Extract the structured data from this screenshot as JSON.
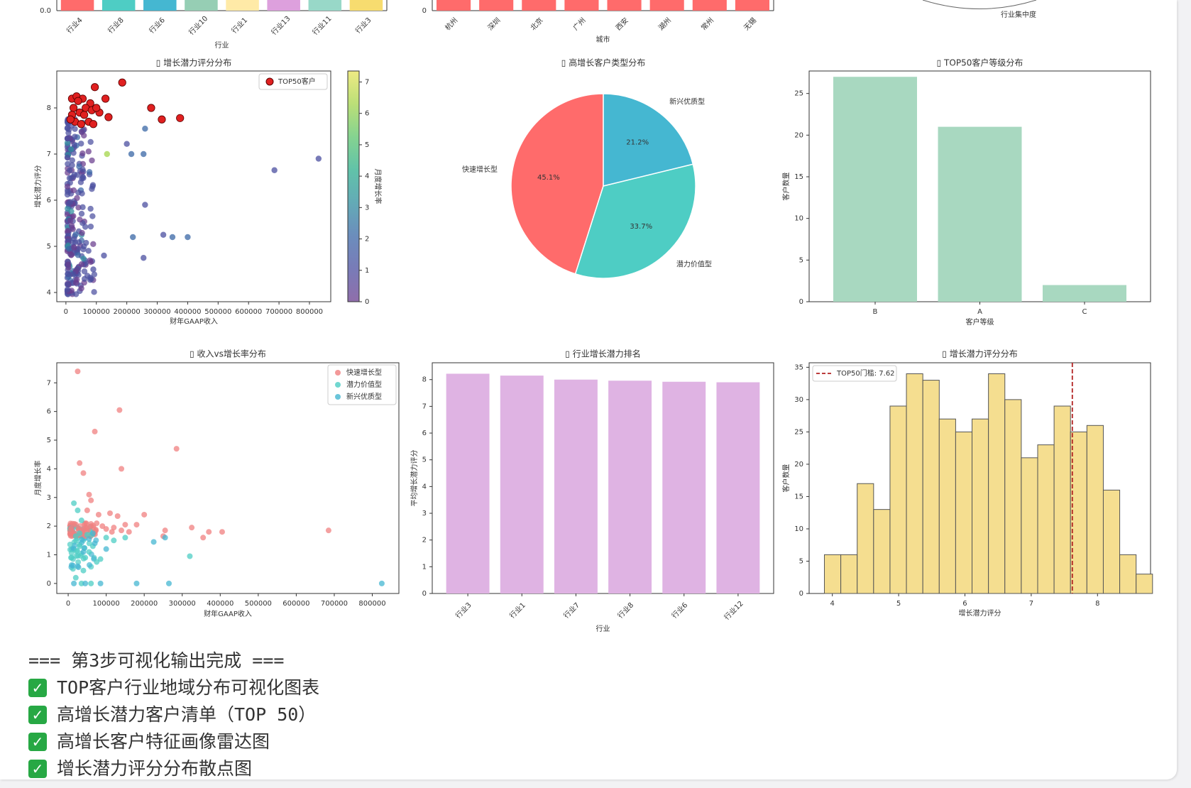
{
  "top_row": {
    "left": {
      "ytick": "0.0",
      "xlabel": "行业",
      "categories": [
        "行业4",
        "行业8",
        "行业6",
        "行业10",
        "行业1",
        "行业13",
        "行业11",
        "行业3"
      ],
      "colors": [
        "#ff6b6b",
        "#4ecdc4",
        "#45b7d1",
        "#96ceb4",
        "#ffeaa7",
        "#dda0dd",
        "#98d8c8",
        "#f7dc6f"
      ]
    },
    "middle": {
      "ytick": "0",
      "xlabel": "城市",
      "categories": [
        "杭州",
        "深圳",
        "北京",
        "广州",
        "西安",
        "湖州",
        "常州",
        "无锡"
      ],
      "color": "#ff6b6b"
    },
    "right": {
      "label": "行业集中度"
    }
  },
  "chart_data": [
    {
      "type": "scatter",
      "title": "增长潜力评分分布",
      "xlabel": "财年GAAP收入",
      "ylabel": "增长潜力评分",
      "xticks": [
        "0",
        "100000",
        "200000",
        "300000",
        "400000",
        "500000",
        "600000",
        "700000",
        "800000"
      ],
      "yticks": [
        "4",
        "5",
        "6",
        "7",
        "8"
      ],
      "xlim": [
        -30000,
        870000
      ],
      "ylim": [
        3.8,
        8.8
      ],
      "legend": "TOP50客户",
      "colorbar_label": "月度增长率",
      "colorbar_ticks": [
        "0",
        "1",
        "2",
        "3",
        "4",
        "5",
        "6",
        "7"
      ],
      "top50_points": [
        [
          20000,
          8.2
        ],
        [
          35000,
          8.25
        ],
        [
          55000,
          8.2
        ],
        [
          80000,
          8.1
        ],
        [
          95000,
          8.45
        ],
        [
          130000,
          8.2
        ],
        [
          185000,
          8.55
        ],
        [
          280000,
          8.0
        ],
        [
          315000,
          7.75
        ],
        [
          375000,
          7.78
        ],
        [
          25000,
          8.0
        ],
        [
          45000,
          7.9
        ],
        [
          60000,
          7.85
        ],
        [
          75000,
          7.7
        ],
        [
          90000,
          7.65
        ],
        [
          110000,
          7.9
        ],
        [
          140000,
          7.8
        ],
        [
          30000,
          7.7
        ],
        [
          50000,
          7.65
        ],
        [
          20000,
          7.85
        ],
        [
          65000,
          8.0
        ],
        [
          40000,
          8.15
        ],
        [
          85000,
          7.95
        ],
        [
          100000,
          8.0
        ],
        [
          15000,
          7.75
        ]
      ],
      "outlier_points": [
        [
          685000,
          6.65,
          0.5
        ],
        [
          830000,
          6.9,
          0.8
        ],
        [
          220000,
          5.2,
          2.0
        ],
        [
          255000,
          4.75,
          1.0
        ],
        [
          320000,
          5.25,
          1.0
        ],
        [
          350000,
          5.2,
          2.0
        ],
        [
          400000,
          5.2,
          2.0
        ],
        [
          260000,
          5.9,
          0.5
        ],
        [
          255000,
          7.0,
          2.0
        ],
        [
          215000,
          7.0,
          2.0
        ],
        [
          200000,
          7.22,
          0.8
        ],
        [
          260000,
          7.55,
          2.0
        ],
        [
          135000,
          7.0,
          5.5
        ],
        [
          90000,
          4.5,
          1.0
        ],
        [
          125000,
          4.8,
          1.0
        ]
      ]
    },
    {
      "type": "pie",
      "title": "高增长客户类型分布",
      "labels": [
        "快速增长型",
        "潜力价值型",
        "新兴优质型"
      ],
      "values": [
        45.1,
        33.7,
        21.2
      ],
      "value_labels": [
        "45.1%",
        "33.7%",
        "21.2%"
      ],
      "colors": [
        "#ff6b6b",
        "#4ecdc4",
        "#45b7d1"
      ]
    },
    {
      "type": "bar",
      "title": "TOP50客户等级分布",
      "categories": [
        "B",
        "A",
        "C"
      ],
      "values": [
        27,
        21,
        2
      ],
      "xlabel": "客户等级",
      "ylabel": "客户数量",
      "yticks": [
        "0",
        "5",
        "10",
        "15",
        "20",
        "25"
      ],
      "ylim": [
        0,
        27.7
      ],
      "color": "#a8d8c0"
    },
    {
      "type": "scatter",
      "title": "收入vs增长率分布",
      "xlabel": "财年GAAP收入",
      "ylabel": "月度增长率",
      "xticks": [
        "0",
        "100000",
        "200000",
        "300000",
        "400000",
        "500000",
        "600000",
        "700000",
        "800000"
      ],
      "yticks": [
        "0",
        "1",
        "2",
        "3",
        "4",
        "5",
        "6",
        "7"
      ],
      "xlim": [
        -30000,
        870000
      ],
      "ylim": [
        -0.35,
        7.7
      ],
      "series": [
        {
          "name": "快速增长型",
          "color": "#f08080",
          "points": [
            [
              25000,
              7.4
            ],
            [
              135000,
              6.05
            ],
            [
              70000,
              5.3
            ],
            [
              285000,
              4.7
            ],
            [
              140000,
              4.0
            ],
            [
              30000,
              4.2
            ],
            [
              40000,
              3.85
            ],
            [
              55000,
              3.1
            ],
            [
              60000,
              2.9
            ],
            [
              50000,
              2.55
            ],
            [
              80000,
              2.4
            ],
            [
              110000,
              2.45
            ],
            [
              130000,
              2.35
            ],
            [
              200000,
              2.4
            ],
            [
              180000,
              2.05
            ],
            [
              255000,
              1.85
            ],
            [
              325000,
              1.95
            ],
            [
              370000,
              1.8
            ],
            [
              405000,
              1.8
            ],
            [
              685000,
              1.85
            ],
            [
              250000,
              1.65
            ],
            [
              355000,
              1.6
            ],
            [
              90000,
              2.0
            ],
            [
              100000,
              1.9
            ],
            [
              120000,
              1.95
            ],
            [
              140000,
              1.85
            ],
            [
              160000,
              1.8
            ],
            [
              60000,
              2.0
            ],
            [
              70000,
              1.8
            ],
            [
              45000,
              2.1
            ],
            [
              35000,
              1.85
            ],
            [
              75000,
              2.1
            ],
            [
              150000,
              2.05
            ],
            [
              115000,
              1.8
            ]
          ]
        },
        {
          "name": "潜力价值型",
          "color": "#4ecdc4",
          "points": [
            [
              15000,
              2.8
            ],
            [
              25000,
              2.55
            ],
            [
              35000,
              2.2
            ],
            [
              20000,
              1.65
            ],
            [
              30000,
              1.3
            ],
            [
              45000,
              0.9
            ],
            [
              55000,
              1.1
            ],
            [
              65000,
              1.3
            ],
            [
              75000,
              0.75
            ],
            [
              85000,
              0.85
            ],
            [
              40000,
              0.45
            ],
            [
              20000,
              0.2
            ],
            [
              35000,
              0.0
            ],
            [
              60000,
              0.0
            ],
            [
              100000,
              1.6
            ],
            [
              120000,
              1.5
            ],
            [
              150000,
              1.6
            ],
            [
              320000,
              0.95
            ],
            [
              50000,
              1.7
            ],
            [
              30000,
              1.75
            ]
          ]
        },
        {
          "name": "新兴优质型",
          "color": "#45b7d1",
          "points": [
            [
              825000,
              0.0
            ],
            [
              265000,
              0.0
            ],
            [
              225000,
              1.45
            ],
            [
              255000,
              1.6
            ],
            [
              180000,
              0.0
            ],
            [
              85000,
              0.0
            ],
            [
              15000,
              0.0
            ],
            [
              45000,
              0.0
            ],
            [
              100000,
              1.2
            ],
            [
              70000,
              1.4
            ],
            [
              55000,
              1.55
            ],
            [
              40000,
              1.1
            ],
            [
              25000,
              0.6
            ],
            [
              65000,
              1.75
            ]
          ]
        }
      ]
    },
    {
      "type": "bar",
      "title": "行业增长潜力排名",
      "categories": [
        "行业3",
        "行业1",
        "行业7",
        "行业8",
        "行业6",
        "行业12"
      ],
      "values": [
        8.22,
        8.15,
        8.0,
        7.96,
        7.92,
        7.9
      ],
      "xlabel": "行业",
      "ylabel": "平均增长潜力评分",
      "yticks": [
        "0",
        "1",
        "2",
        "3",
        "4",
        "5",
        "6",
        "7",
        "8"
      ],
      "ylim": [
        0,
        8.63
      ],
      "color": "#dfb3e3"
    },
    {
      "type": "bar",
      "title": "增长潜力评分分布",
      "xlabel": "增长潜力评分",
      "ylabel": "客户数量",
      "bin_start": 3.88,
      "bin_width": 0.2475,
      "values": [
        6,
        6,
        17,
        13,
        29,
        34,
        33,
        27,
        25,
        27,
        34,
        30,
        21,
        23,
        29,
        25,
        26,
        16,
        6,
        3
      ],
      "xticks": [
        "4",
        "5",
        "6",
        "7",
        "8"
      ],
      "yticks": [
        "0",
        "5",
        "10",
        "15",
        "20",
        "25",
        "30",
        "35"
      ],
      "xlim": [
        3.65,
        8.8
      ],
      "ylim": [
        0,
        35.7
      ],
      "threshold": 7.62,
      "threshold_label": "TOP50门槛: 7.62",
      "color": "#f5de90"
    }
  ],
  "console": {
    "lines": [
      "=== 第3步可视化输出完成 ===",
      "TOP客户行业地域分布可视化图表",
      "高增长潜力客户清单（TOP 50）",
      "高增长客户特征画像雷达图",
      "增长潜力评分分布散点图"
    ],
    "check_glyph": "✓"
  }
}
